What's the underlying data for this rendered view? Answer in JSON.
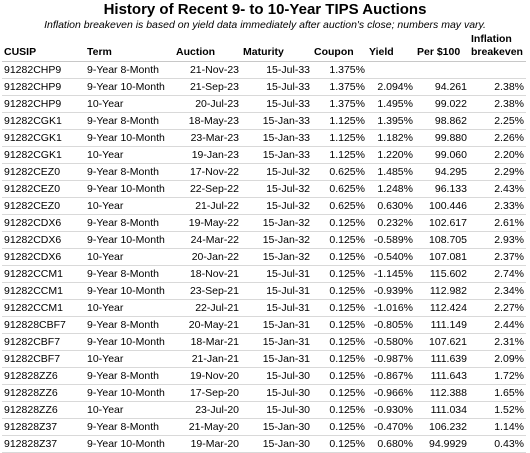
{
  "title": "History of Recent 9- to 10-Year TIPS Auctions",
  "subtitle": "Inflation breakeven is based on yield data immediately after auction's close; numbers may vary.",
  "headers": [
    "CUSIP",
    "Term",
    "Auction",
    "Maturity",
    "Coupon",
    "Yield",
    "Per $100",
    "Inflation breakeven"
  ],
  "rows": [
    [
      "91282CHP9",
      "9-Year 8-Month",
      "21-Nov-23",
      "15-Jul-33",
      "1.375%",
      "",
      "",
      ""
    ],
    [
      "91282CHP9",
      "9-Year 10-Month",
      "21-Sep-23",
      "15-Jul-33",
      "1.375%",
      "2.094%",
      "94.261",
      "2.38%"
    ],
    [
      "91282CHP9",
      "10-Year",
      "20-Jul-23",
      "15-Jul-33",
      "1.375%",
      "1.495%",
      "99.022",
      "2.38%"
    ],
    [
      "91282CGK1",
      "9-Year 8-Month",
      "18-May-23",
      "15-Jan-33",
      "1.125%",
      "1.395%",
      "98.862",
      "2.25%"
    ],
    [
      "91282CGK1",
      "9-Year 10-Month",
      "23-Mar-23",
      "15-Jan-33",
      "1.125%",
      "1.182%",
      "99.880",
      "2.26%"
    ],
    [
      "91282CGK1",
      "10-Year",
      "19-Jan-23",
      "15-Jan-33",
      "1.125%",
      "1.220%",
      "99.060",
      "2.20%"
    ],
    [
      "91282CEZ0",
      "9-Year 8-Month",
      "17-Nov-22",
      "15-Jul-32",
      "0.625%",
      "1.485%",
      "94.295",
      "2.29%"
    ],
    [
      "91282CEZ0",
      "9-Year 10-Month",
      "22-Sep-22",
      "15-Jul-32",
      "0.625%",
      "1.248%",
      "96.133",
      "2.43%"
    ],
    [
      "91282CEZ0",
      "10-Year",
      "21-Jul-22",
      "15-Jul-32",
      "0.625%",
      "0.630%",
      "100.446",
      "2.33%"
    ],
    [
      "91282CDX6",
      "9-Year 8-Month",
      "19-May-22",
      "15-Jan-32",
      "0.125%",
      "0.232%",
      "102.617",
      "2.61%"
    ],
    [
      "91282CDX6",
      "9-Year 10-Month",
      "24-Mar-22",
      "15-Jan-32",
      "0.125%",
      "-0.589%",
      "108.705",
      "2.93%"
    ],
    [
      "91282CDX6",
      "10-Year",
      "20-Jan-22",
      "15-Jan-32",
      "0.125%",
      "-0.540%",
      "107.081",
      "2.37%"
    ],
    [
      "91282CCM1",
      "9-Year 8-Month",
      "18-Nov-21",
      "15-Jul-31",
      "0.125%",
      "-1.145%",
      "115.602",
      "2.74%"
    ],
    [
      "91282CCM1",
      "9-Year 10-Month",
      "23-Sep-21",
      "15-Jul-31",
      "0.125%",
      "-0.939%",
      "112.982",
      "2.34%"
    ],
    [
      "91282CCM1",
      "10-Year",
      "22-Jul-21",
      "15-Jul-31",
      "0.125%",
      "-1.016%",
      "112.424",
      "2.27%"
    ],
    [
      "912828CBF7",
      "9-Year 8-Month",
      "20-May-21",
      "15-Jan-31",
      "0.125%",
      "-0.805%",
      "111.149",
      "2.44%"
    ],
    [
      "91282CBF7",
      "9-Year 10-Month",
      "18-Mar-21",
      "15-Jan-31",
      "0.125%",
      "-0.580%",
      "107.621",
      "2.31%"
    ],
    [
      "91282CBF7",
      "10-Year",
      "21-Jan-21",
      "15-Jan-31",
      "0.125%",
      "-0.987%",
      "111.639",
      "2.09%"
    ],
    [
      "912828ZZ6",
      "9-Year 8-Month",
      "19-Nov-20",
      "15-Jul-30",
      "0.125%",
      "-0.867%",
      "111.643",
      "1.72%"
    ],
    [
      "912828ZZ6",
      "9-Year 10-Month",
      "17-Sep-20",
      "15-Jul-30",
      "0.125%",
      "-0.966%",
      "112.388",
      "1.65%"
    ],
    [
      "912828ZZ6",
      "10-Year",
      "23-Jul-20",
      "15-Jul-30",
      "0.125%",
      "-0.930%",
      "111.034",
      "1.52%"
    ],
    [
      "912828Z37",
      "9-Year 8-Month",
      "21-May-20",
      "15-Jan-30",
      "0.125%",
      "-0.470%",
      "106.232",
      "1.14%"
    ],
    [
      "912828Z37",
      "9-Year 10-Month",
      "19-Mar-20",
      "15-Jan-30",
      "0.125%",
      "0.680%",
      "94.9929",
      "0.43%"
    ]
  ]
}
